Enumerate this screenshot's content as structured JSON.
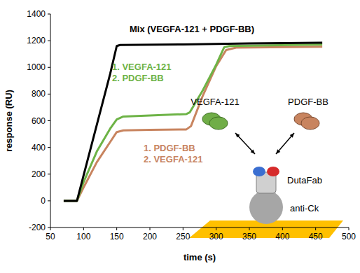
{
  "chart_data": {
    "type": "line",
    "x_label": "time (s)",
    "y_label": "response (RU)",
    "xlim": [
      50,
      500
    ],
    "ylim": [
      -200,
      1400
    ],
    "xticks": [
      50,
      100,
      150,
      200,
      250,
      300,
      350,
      400,
      450,
      500
    ],
    "yticks": [
      -200,
      0,
      200,
      400,
      600,
      800,
      1000,
      1200,
      1400
    ],
    "grid": false,
    "series": [
      {
        "name": "Mix (VEGFA-121 + PDGF-BB)",
        "color": "#000000",
        "x": [
          70,
          90,
          100,
          120,
          140,
          150,
          155,
          250,
          350,
          460
        ],
        "values": [
          0,
          0,
          190,
          570,
          950,
          1160,
          1168,
          1172,
          1180,
          1185
        ]
      },
      {
        "name": "1. VEGFA-121\n2. PDGF-BB",
        "color": "#6db346",
        "x": [
          70,
          90,
          100,
          120,
          140,
          150,
          160,
          200,
          255,
          260,
          280,
          300,
          312,
          320,
          460
        ],
        "values": [
          0,
          0,
          140,
          370,
          540,
          610,
          632,
          640,
          650,
          662,
          830,
          1020,
          1150,
          1160,
          1172
        ]
      },
      {
        "name": "1. PDGF-BB\n2. VEGFA-121",
        "color": "#c8845f",
        "x": [
          70,
          90,
          100,
          120,
          140,
          150,
          160,
          200,
          255,
          262,
          280,
          300,
          315,
          330,
          460
        ],
        "values": [
          0,
          0,
          100,
          290,
          440,
          515,
          528,
          532,
          535,
          560,
          790,
          1010,
          1130,
          1148,
          1155
        ]
      }
    ],
    "annotations": [
      "VEGFA-121",
      "PDGF-BB",
      "DutaFab",
      "anti-Ck"
    ]
  }
}
